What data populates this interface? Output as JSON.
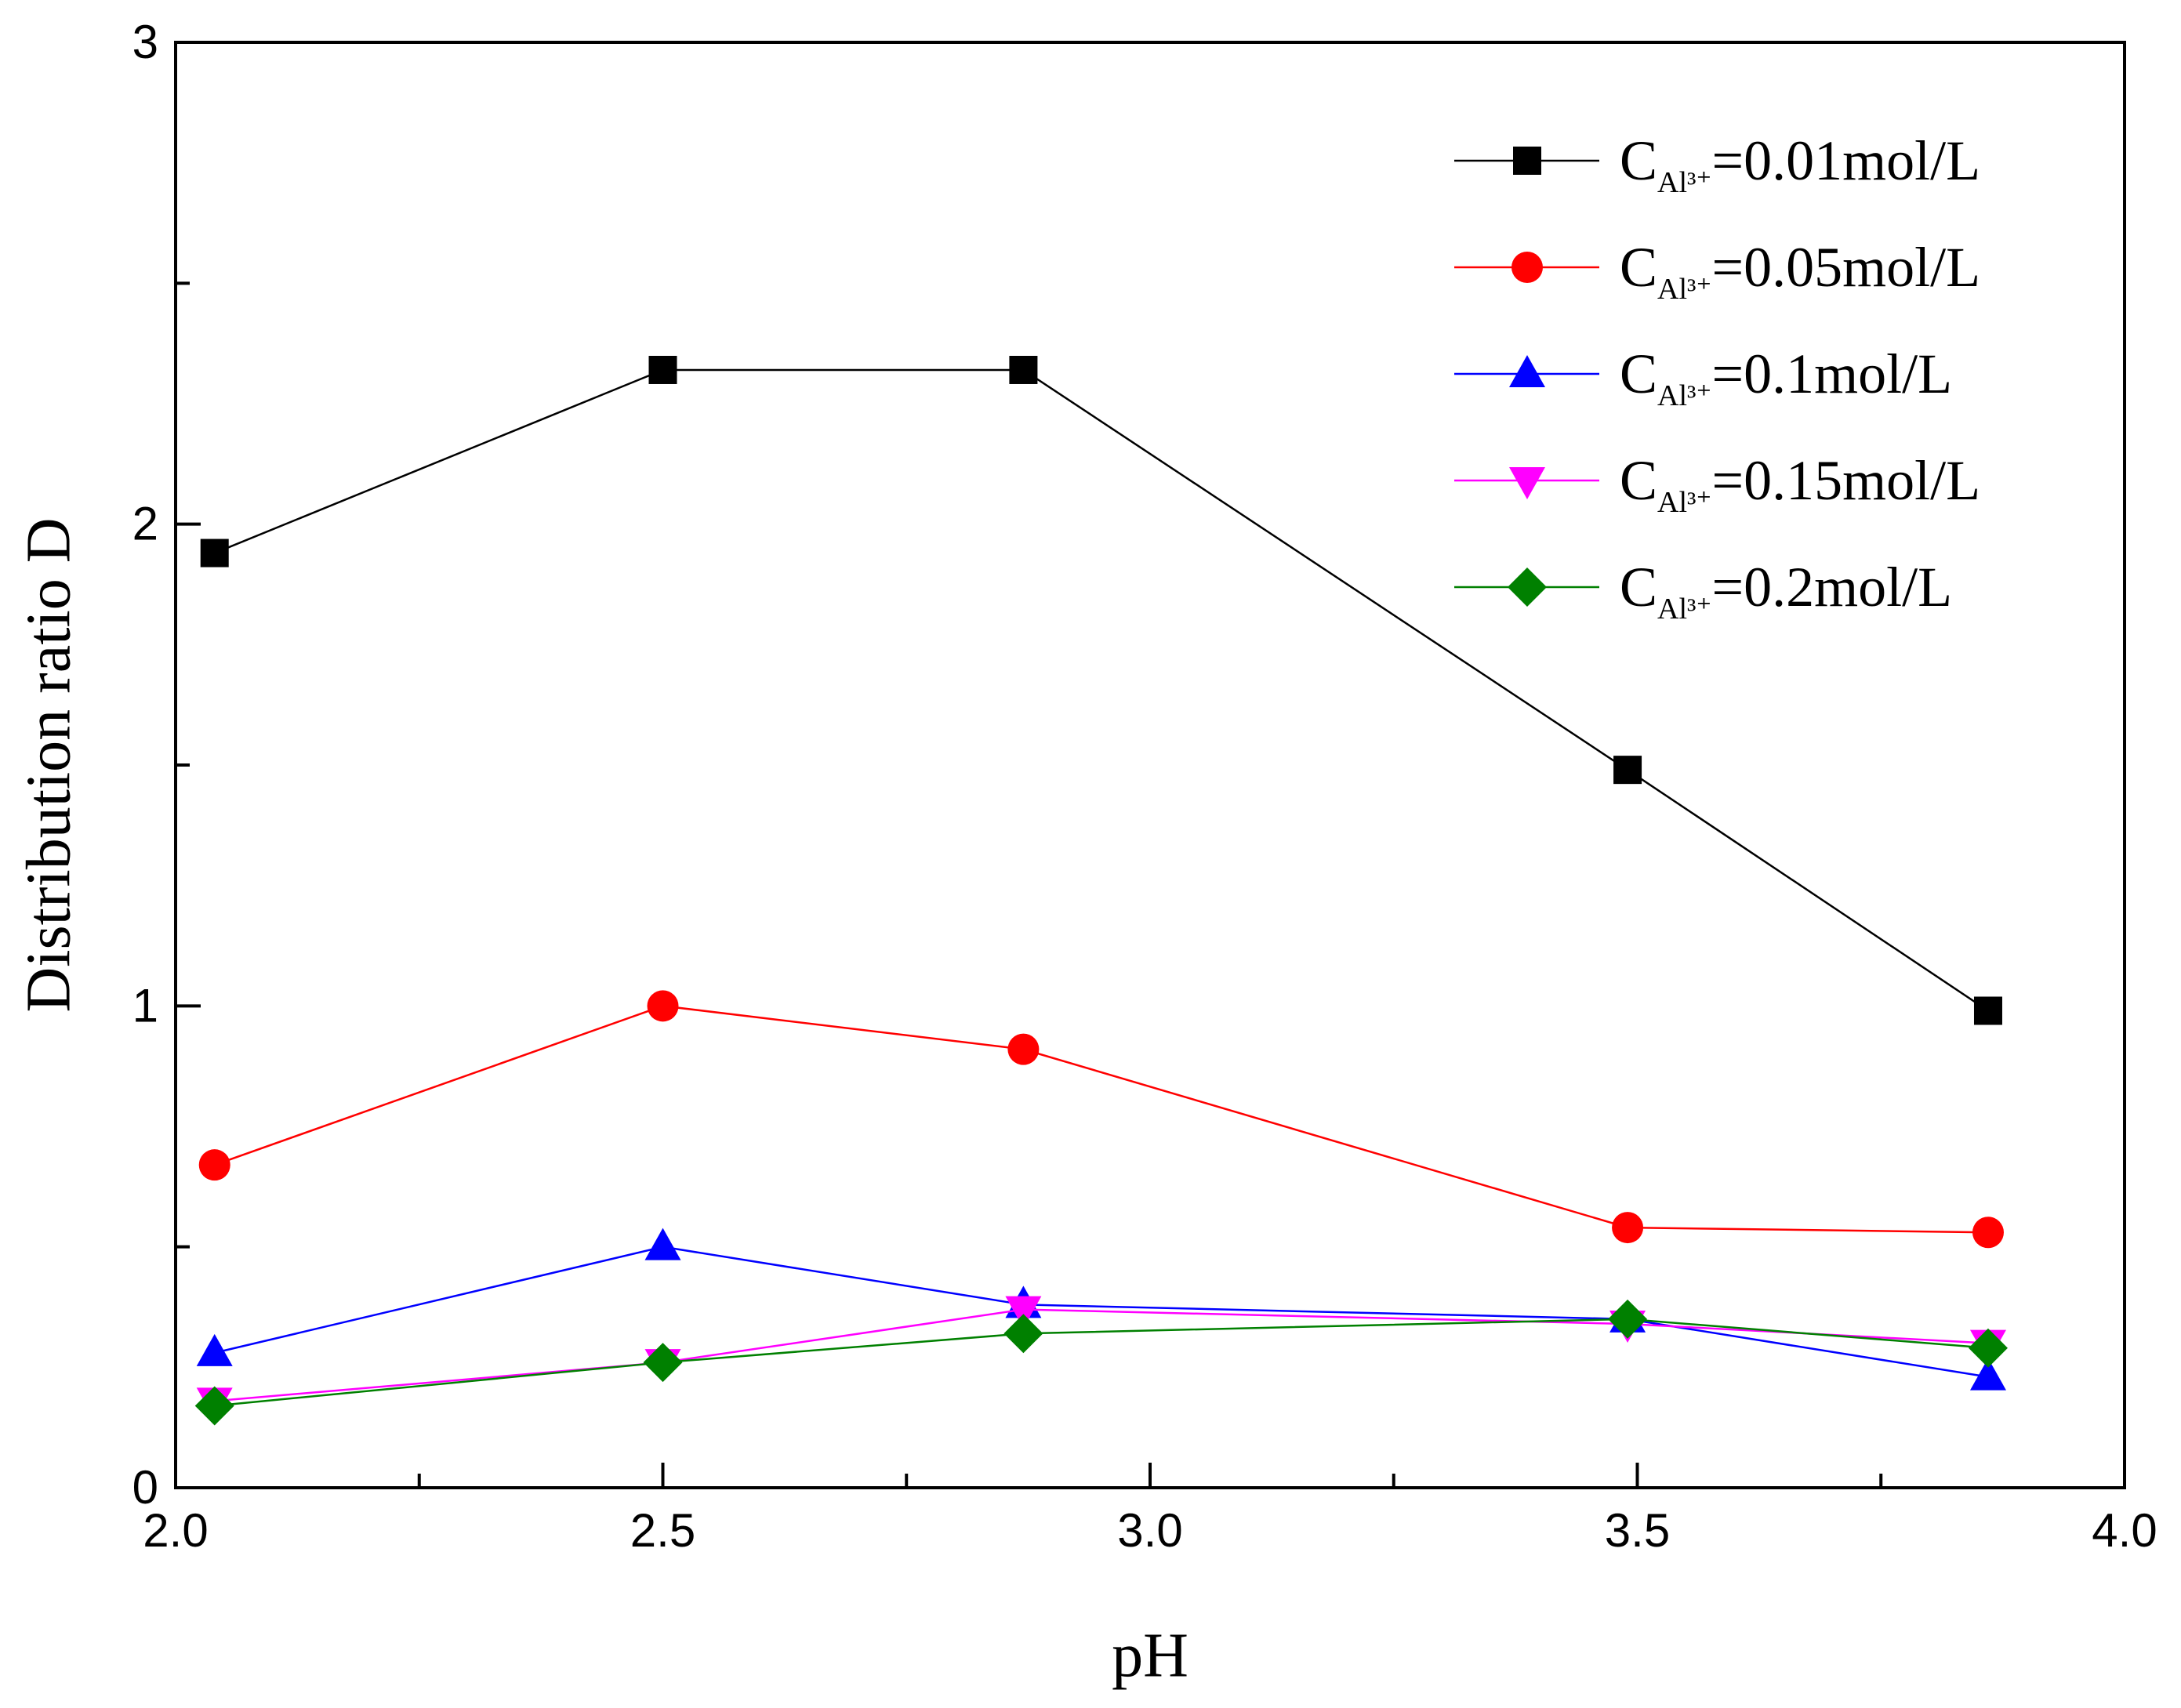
{
  "chart_data": {
    "type": "line",
    "title": "",
    "xlabel": "pH",
    "ylabel": "Distribution ratio D",
    "xlim": [
      2.0,
      4.0
    ],
    "ylim": [
      0,
      3
    ],
    "x_ticks": [
      "2.0",
      "2.5",
      "3.0",
      "3.5",
      "4.0"
    ],
    "y_ticks": [
      "0",
      "1",
      "2",
      "3"
    ],
    "grid": false,
    "legend_position": "top-right",
    "x": [
      2.04,
      2.5,
      2.87,
      3.49,
      3.86
    ],
    "series": [
      {
        "name": "C Al3+ =0.01mol/L",
        "legend_prefix": "C",
        "legend_sub": "Al³⁺",
        "legend_suffix": "=0.01mol/L",
        "color": "#000000",
        "marker": "square",
        "values": [
          1.94,
          2.32,
          2.32,
          1.49,
          0.99
        ]
      },
      {
        "name": "C Al3+ =0.05mol/L",
        "legend_prefix": "C",
        "legend_sub": "Al³⁺",
        "legend_suffix": "=0.05mol/L",
        "color": "#ff0000",
        "marker": "circle",
        "values": [
          0.67,
          1.0,
          0.91,
          0.54,
          0.53
        ]
      },
      {
        "name": "C Al3+ =0.1mol/L",
        "legend_prefix": "C",
        "legend_sub": "Al³⁺",
        "legend_suffix": "=0.1mol/L",
        "color": "#0000ff",
        "marker": "triangle-up",
        "values": [
          0.28,
          0.5,
          0.38,
          0.35,
          0.23
        ]
      },
      {
        "name": "C Al3+ =0.15mol/L",
        "legend_prefix": "C",
        "legend_sub": "Al³⁺",
        "legend_suffix": "=0.15mol/L",
        "color": "#ff00ff",
        "marker": "triangle-down",
        "values": [
          0.18,
          0.26,
          0.37,
          0.34,
          0.3
        ]
      },
      {
        "name": "C Al3+ =0.2mol/L",
        "legend_prefix": "C",
        "legend_sub": "Al³⁺",
        "legend_suffix": "=0.2mol/L",
        "color": "#008000",
        "marker": "diamond",
        "values": [
          0.17,
          0.26,
          0.32,
          0.35,
          0.29
        ]
      }
    ]
  }
}
